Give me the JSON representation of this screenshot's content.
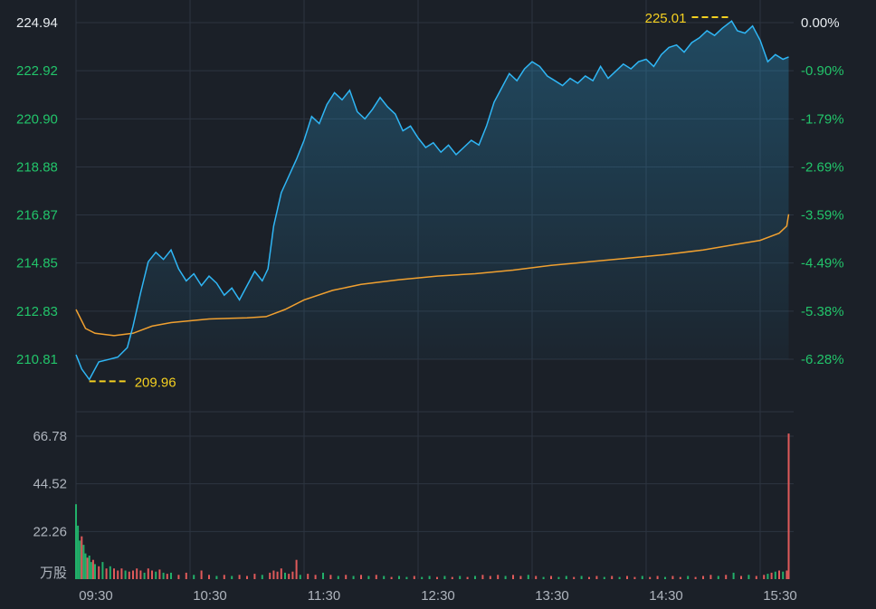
{
  "colors": {
    "background": "#1b2028",
    "grid": "#2c3440",
    "price_line": "#2fb6f5",
    "avg_line": "#f0a030",
    "up_text": "#22c46a",
    "top_text": "#e8ecf0",
    "marker": "#f5d020",
    "vol_up": "#e05a5a",
    "vol_down": "#22b06a"
  },
  "chart_data": {
    "type": "line",
    "price_axis": {
      "ticks_left": [
        "224.94",
        "222.92",
        "220.90",
        "218.88",
        "216.87",
        "214.85",
        "212.83",
        "210.81"
      ],
      "ticks_right": [
        "0.00%",
        "-0.90%",
        "-1.79%",
        "-2.69%",
        "-3.59%",
        "-4.49%",
        "-5.38%",
        "-6.28%"
      ],
      "ylim": [
        210.81,
        224.94
      ]
    },
    "x_ticks": [
      "09:30",
      "10:30",
      "11:30",
      "12:30",
      "13:30",
      "14:30",
      "15:30"
    ],
    "annotations": {
      "high": {
        "label": "225.01",
        "time": "15:15",
        "value": 225.01
      },
      "low": {
        "label": "209.96",
        "time": "09:37",
        "value": 209.96
      }
    },
    "series": [
      {
        "key": "price",
        "points": [
          [
            "09:30",
            211.0
          ],
          [
            "09:33",
            210.4
          ],
          [
            "09:37",
            209.96
          ],
          [
            "09:42",
            210.7
          ],
          [
            "09:47",
            210.8
          ],
          [
            "09:52",
            210.9
          ],
          [
            "09:57",
            211.3
          ],
          [
            "10:00",
            212.2
          ],
          [
            "10:04",
            213.6
          ],
          [
            "10:08",
            214.9
          ],
          [
            "10:12",
            215.3
          ],
          [
            "10:16",
            215.0
          ],
          [
            "10:20",
            215.4
          ],
          [
            "10:24",
            214.6
          ],
          [
            "10:28",
            214.1
          ],
          [
            "10:32",
            214.4
          ],
          [
            "10:36",
            213.9
          ],
          [
            "10:40",
            214.3
          ],
          [
            "10:44",
            214.0
          ],
          [
            "10:48",
            213.5
          ],
          [
            "10:52",
            213.8
          ],
          [
            "10:56",
            213.3
          ],
          [
            "11:00",
            213.9
          ],
          [
            "11:04",
            214.5
          ],
          [
            "11:08",
            214.1
          ],
          [
            "11:11",
            214.6
          ],
          [
            "11:14",
            216.4
          ],
          [
            "11:18",
            217.8
          ],
          [
            "11:22",
            218.5
          ],
          [
            "11:26",
            219.2
          ],
          [
            "11:30",
            220.0
          ],
          [
            "11:34",
            221.0
          ],
          [
            "11:38",
            220.7
          ],
          [
            "11:42",
            221.5
          ],
          [
            "11:46",
            222.0
          ],
          [
            "11:50",
            221.7
          ],
          [
            "11:54",
            222.1
          ],
          [
            "11:58",
            221.2
          ],
          [
            "12:02",
            220.9
          ],
          [
            "12:06",
            221.3
          ],
          [
            "12:10",
            221.8
          ],
          [
            "12:14",
            221.4
          ],
          [
            "12:18",
            221.1
          ],
          [
            "12:22",
            220.4
          ],
          [
            "12:26",
            220.6
          ],
          [
            "12:30",
            220.1
          ],
          [
            "12:34",
            219.7
          ],
          [
            "12:38",
            219.9
          ],
          [
            "12:42",
            219.5
          ],
          [
            "12:46",
            219.8
          ],
          [
            "12:50",
            219.4
          ],
          [
            "12:54",
            219.7
          ],
          [
            "12:58",
            220.0
          ],
          [
            "13:02",
            219.8
          ],
          [
            "13:06",
            220.6
          ],
          [
            "13:10",
            221.6
          ],
          [
            "13:14",
            222.2
          ],
          [
            "13:18",
            222.8
          ],
          [
            "13:22",
            222.5
          ],
          [
            "13:26",
            223.0
          ],
          [
            "13:30",
            223.3
          ],
          [
            "13:34",
            223.1
          ],
          [
            "13:38",
            222.7
          ],
          [
            "13:42",
            222.5
          ],
          [
            "13:46",
            222.3
          ],
          [
            "13:50",
            222.6
          ],
          [
            "13:54",
            222.4
          ],
          [
            "13:58",
            222.7
          ],
          [
            "14:02",
            222.5
          ],
          [
            "14:06",
            223.1
          ],
          [
            "14:10",
            222.6
          ],
          [
            "14:14",
            222.9
          ],
          [
            "14:18",
            223.2
          ],
          [
            "14:22",
            223.0
          ],
          [
            "14:26",
            223.3
          ],
          [
            "14:30",
            223.4
          ],
          [
            "14:34",
            223.1
          ],
          [
            "14:38",
            223.6
          ],
          [
            "14:42",
            223.9
          ],
          [
            "14:46",
            224.0
          ],
          [
            "14:50",
            223.7
          ],
          [
            "14:54",
            224.1
          ],
          [
            "14:58",
            224.3
          ],
          [
            "15:02",
            224.6
          ],
          [
            "15:06",
            224.4
          ],
          [
            "15:10",
            224.7
          ],
          [
            "15:15",
            225.01
          ],
          [
            "15:18",
            224.6
          ],
          [
            "15:22",
            224.5
          ],
          [
            "15:26",
            224.8
          ],
          [
            "15:30",
            224.2
          ],
          [
            "15:34",
            223.3
          ],
          [
            "15:38",
            223.6
          ],
          [
            "15:42",
            223.4
          ],
          [
            "15:45",
            223.5
          ]
        ]
      },
      {
        "key": "average",
        "points": [
          [
            "09:30",
            212.9
          ],
          [
            "09:35",
            212.1
          ],
          [
            "09:40",
            211.9
          ],
          [
            "09:50",
            211.8
          ],
          [
            "10:00",
            211.9
          ],
          [
            "10:10",
            212.2
          ],
          [
            "10:20",
            212.35
          ],
          [
            "10:40",
            212.5
          ],
          [
            "11:00",
            212.55
          ],
          [
            "11:10",
            212.6
          ],
          [
            "11:20",
            212.9
          ],
          [
            "11:30",
            213.3
          ],
          [
            "11:45",
            213.7
          ],
          [
            "12:00",
            213.95
          ],
          [
            "12:20",
            214.15
          ],
          [
            "12:40",
            214.3
          ],
          [
            "13:00",
            214.4
          ],
          [
            "13:20",
            214.55
          ],
          [
            "13:40",
            214.75
          ],
          [
            "14:00",
            214.9
          ],
          [
            "14:20",
            215.05
          ],
          [
            "14:40",
            215.2
          ],
          [
            "15:00",
            215.4
          ],
          [
            "15:15",
            215.6
          ],
          [
            "15:30",
            215.8
          ],
          [
            "15:40",
            216.1
          ],
          [
            "15:44",
            216.4
          ],
          [
            "15:45",
            216.9
          ]
        ]
      }
    ],
    "volume": {
      "unit_label": "万股",
      "ticks": [
        "66.78",
        "44.52",
        "22.26"
      ],
      "ylim": [
        0,
        66.78
      ],
      "bars": [
        {
          "t": "09:30",
          "v": 35.0,
          "dir": "down"
        },
        {
          "t": "09:31",
          "v": 25.0,
          "dir": "down"
        },
        {
          "t": "09:32",
          "v": 18.0,
          "dir": "down"
        },
        {
          "t": "09:33",
          "v": 20.0,
          "dir": "up"
        },
        {
          "t": "09:34",
          "v": 16.0,
          "dir": "down"
        },
        {
          "t": "09:35",
          "v": 12.0,
          "dir": "down"
        },
        {
          "t": "09:36",
          "v": 10.0,
          "dir": "up"
        },
        {
          "t": "09:37",
          "v": 11.0,
          "dir": "down"
        },
        {
          "t": "09:38",
          "v": 8.0,
          "dir": "down"
        },
        {
          "t": "09:39",
          "v": 9.0,
          "dir": "up"
        },
        {
          "t": "09:40",
          "v": 7.0,
          "dir": "down"
        },
        {
          "t": "09:42",
          "v": 6.0,
          "dir": "up"
        },
        {
          "t": "09:44",
          "v": 8.0,
          "dir": "down"
        },
        {
          "t": "09:46",
          "v": 5.0,
          "dir": "up"
        },
        {
          "t": "09:48",
          "v": 6.0,
          "dir": "down"
        },
        {
          "t": "09:50",
          "v": 5.0,
          "dir": "up"
        },
        {
          "t": "09:52",
          "v": 4.0,
          "dir": "up"
        },
        {
          "t": "09:54",
          "v": 5.0,
          "dir": "up"
        },
        {
          "t": "09:56",
          "v": 4.0,
          "dir": "down"
        },
        {
          "t": "09:58",
          "v": 3.5,
          "dir": "up"
        },
        {
          "t": "10:00",
          "v": 4.0,
          "dir": "up"
        },
        {
          "t": "10:02",
          "v": 5.0,
          "dir": "up"
        },
        {
          "t": "10:04",
          "v": 4.0,
          "dir": "up"
        },
        {
          "t": "10:06",
          "v": 3.0,
          "dir": "down"
        },
        {
          "t": "10:08",
          "v": 5.0,
          "dir": "up"
        },
        {
          "t": "10:10",
          "v": 4.0,
          "dir": "up"
        },
        {
          "t": "10:12",
          "v": 3.5,
          "dir": "down"
        },
        {
          "t": "10:14",
          "v": 4.5,
          "dir": "up"
        },
        {
          "t": "10:16",
          "v": 3.0,
          "dir": "down"
        },
        {
          "t": "10:18",
          "v": 2.5,
          "dir": "up"
        },
        {
          "t": "10:20",
          "v": 3.0,
          "dir": "down"
        },
        {
          "t": "10:24",
          "v": 2.0,
          "dir": "up"
        },
        {
          "t": "10:28",
          "v": 3.0,
          "dir": "up"
        },
        {
          "t": "10:32",
          "v": 2.0,
          "dir": "down"
        },
        {
          "t": "10:36",
          "v": 4.0,
          "dir": "up"
        },
        {
          "t": "10:40",
          "v": 2.0,
          "dir": "up"
        },
        {
          "t": "10:44",
          "v": 1.5,
          "dir": "down"
        },
        {
          "t": "10:48",
          "v": 2.0,
          "dir": "up"
        },
        {
          "t": "10:52",
          "v": 1.5,
          "dir": "down"
        },
        {
          "t": "10:56",
          "v": 2.0,
          "dir": "up"
        },
        {
          "t": "11:00",
          "v": 1.5,
          "dir": "up"
        },
        {
          "t": "11:04",
          "v": 2.5,
          "dir": "up"
        },
        {
          "t": "11:08",
          "v": 2.0,
          "dir": "down"
        },
        {
          "t": "11:12",
          "v": 3.0,
          "dir": "up"
        },
        {
          "t": "11:14",
          "v": 4.0,
          "dir": "up"
        },
        {
          "t": "11:16",
          "v": 3.5,
          "dir": "up"
        },
        {
          "t": "11:18",
          "v": 5.0,
          "dir": "up"
        },
        {
          "t": "11:20",
          "v": 3.0,
          "dir": "down"
        },
        {
          "t": "11:22",
          "v": 2.5,
          "dir": "up"
        },
        {
          "t": "11:24",
          "v": 3.5,
          "dir": "up"
        },
        {
          "t": "11:26",
          "v": 9.0,
          "dir": "up"
        },
        {
          "t": "11:28",
          "v": 2.0,
          "dir": "down"
        },
        {
          "t": "11:32",
          "v": 2.5,
          "dir": "up"
        },
        {
          "t": "11:36",
          "v": 2.0,
          "dir": "up"
        },
        {
          "t": "11:40",
          "v": 3.0,
          "dir": "down"
        },
        {
          "t": "11:44",
          "v": 2.0,
          "dir": "up"
        },
        {
          "t": "11:48",
          "v": 1.5,
          "dir": "down"
        },
        {
          "t": "11:52",
          "v": 2.0,
          "dir": "up"
        },
        {
          "t": "11:56",
          "v": 1.5,
          "dir": "down"
        },
        {
          "t": "12:00",
          "v": 2.0,
          "dir": "up"
        },
        {
          "t": "12:04",
          "v": 1.5,
          "dir": "down"
        },
        {
          "t": "12:08",
          "v": 2.0,
          "dir": "up"
        },
        {
          "t": "12:12",
          "v": 1.5,
          "dir": "down"
        },
        {
          "t": "12:16",
          "v": 1.0,
          "dir": "up"
        },
        {
          "t": "12:20",
          "v": 1.5,
          "dir": "down"
        },
        {
          "t": "12:24",
          "v": 1.0,
          "dir": "down"
        },
        {
          "t": "12:28",
          "v": 1.5,
          "dir": "up"
        },
        {
          "t": "12:32",
          "v": 1.0,
          "dir": "down"
        },
        {
          "t": "12:36",
          "v": 1.5,
          "dir": "down"
        },
        {
          "t": "12:40",
          "v": 1.0,
          "dir": "up"
        },
        {
          "t": "12:44",
          "v": 1.5,
          "dir": "down"
        },
        {
          "t": "12:48",
          "v": 1.0,
          "dir": "up"
        },
        {
          "t": "12:52",
          "v": 1.5,
          "dir": "down"
        },
        {
          "t": "12:56",
          "v": 1.0,
          "dir": "up"
        },
        {
          "t": "13:00",
          "v": 1.5,
          "dir": "down"
        },
        {
          "t": "13:04",
          "v": 2.0,
          "dir": "up"
        },
        {
          "t": "13:08",
          "v": 1.5,
          "dir": "up"
        },
        {
          "t": "13:12",
          "v": 2.0,
          "dir": "up"
        },
        {
          "t": "13:16",
          "v": 1.5,
          "dir": "down"
        },
        {
          "t": "13:20",
          "v": 2.0,
          "dir": "up"
        },
        {
          "t": "13:24",
          "v": 1.5,
          "dir": "up"
        },
        {
          "t": "13:28",
          "v": 2.0,
          "dir": "down"
        },
        {
          "t": "13:32",
          "v": 1.5,
          "dir": "up"
        },
        {
          "t": "13:36",
          "v": 1.0,
          "dir": "down"
        },
        {
          "t": "13:40",
          "v": 1.5,
          "dir": "up"
        },
        {
          "t": "13:44",
          "v": 1.0,
          "dir": "down"
        },
        {
          "t": "13:48",
          "v": 1.5,
          "dir": "down"
        },
        {
          "t": "13:52",
          "v": 1.0,
          "dir": "up"
        },
        {
          "t": "13:56",
          "v": 1.5,
          "dir": "down"
        },
        {
          "t": "14:00",
          "v": 1.0,
          "dir": "up"
        },
        {
          "t": "14:04",
          "v": 1.5,
          "dir": "up"
        },
        {
          "t": "14:08",
          "v": 1.0,
          "dir": "down"
        },
        {
          "t": "14:12",
          "v": 1.5,
          "dir": "up"
        },
        {
          "t": "14:16",
          "v": 1.0,
          "dir": "down"
        },
        {
          "t": "14:20",
          "v": 1.5,
          "dir": "up"
        },
        {
          "t": "14:24",
          "v": 1.0,
          "dir": "up"
        },
        {
          "t": "14:28",
          "v": 1.5,
          "dir": "down"
        },
        {
          "t": "14:32",
          "v": 1.0,
          "dir": "up"
        },
        {
          "t": "14:36",
          "v": 1.5,
          "dir": "up"
        },
        {
          "t": "14:40",
          "v": 1.0,
          "dir": "down"
        },
        {
          "t": "14:44",
          "v": 1.5,
          "dir": "up"
        },
        {
          "t": "14:48",
          "v": 1.0,
          "dir": "up"
        },
        {
          "t": "14:52",
          "v": 1.5,
          "dir": "down"
        },
        {
          "t": "14:56",
          "v": 1.0,
          "dir": "up"
        },
        {
          "t": "15:00",
          "v": 1.5,
          "dir": "up"
        },
        {
          "t": "15:04",
          "v": 2.0,
          "dir": "up"
        },
        {
          "t": "15:08",
          "v": 1.5,
          "dir": "down"
        },
        {
          "t": "15:12",
          "v": 2.0,
          "dir": "up"
        },
        {
          "t": "15:16",
          "v": 3.0,
          "dir": "down"
        },
        {
          "t": "15:20",
          "v": 1.5,
          "dir": "up"
        },
        {
          "t": "15:24",
          "v": 2.0,
          "dir": "down"
        },
        {
          "t": "15:28",
          "v": 1.5,
          "dir": "up"
        },
        {
          "t": "15:32",
          "v": 2.0,
          "dir": "up"
        },
        {
          "t": "15:34",
          "v": 2.5,
          "dir": "down"
        },
        {
          "t": "15:36",
          "v": 3.0,
          "dir": "up"
        },
        {
          "t": "15:38",
          "v": 3.5,
          "dir": "down"
        },
        {
          "t": "15:40",
          "v": 4.0,
          "dir": "up"
        },
        {
          "t": "15:42",
          "v": 3.5,
          "dir": "down"
        },
        {
          "t": "15:44",
          "v": 4.0,
          "dir": "up"
        },
        {
          "t": "15:45",
          "v": 68.0,
          "dir": "up"
        }
      ]
    }
  }
}
